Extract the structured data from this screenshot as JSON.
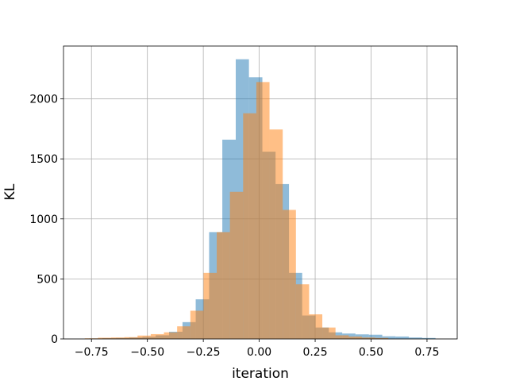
{
  "chart_data": {
    "type": "histogram",
    "title": "",
    "xlabel": "iteration",
    "ylabel": "KL",
    "xlim": [
      -0.875,
      0.885
    ],
    "ylim": [
      0,
      2440
    ],
    "xticks": [
      -0.75,
      -0.5,
      -0.25,
      0.0,
      0.25,
      0.5,
      0.75
    ],
    "xtick_labels": [
      "−0.75",
      "−0.50",
      "−0.25",
      "0.00",
      "0.25",
      "0.50",
      "0.75"
    ],
    "yticks": [
      0,
      500,
      1000,
      1500,
      2000
    ],
    "ytick_labels": [
      "0",
      "500",
      "1000",
      "1500",
      "2000"
    ],
    "grid": true,
    "legend": "none",
    "series": [
      {
        "color": "#1f77b4",
        "opacity": 0.5,
        "bins": [
          {
            "x0": -0.76,
            "x1": -0.701,
            "y": 4
          },
          {
            "x0": -0.701,
            "x1": -0.641,
            "y": 6
          },
          {
            "x0": -0.641,
            "x1": -0.582,
            "y": 8
          },
          {
            "x0": -0.582,
            "x1": -0.522,
            "y": 12
          },
          {
            "x0": -0.522,
            "x1": -0.463,
            "y": 18
          },
          {
            "x0": -0.463,
            "x1": -0.403,
            "y": 30
          },
          {
            "x0": -0.403,
            "x1": -0.343,
            "y": 60
          },
          {
            "x0": -0.343,
            "x1": -0.284,
            "y": 140
          },
          {
            "x0": -0.284,
            "x1": -0.224,
            "y": 330
          },
          {
            "x0": -0.224,
            "x1": -0.165,
            "y": 890
          },
          {
            "x0": -0.165,
            "x1": -0.105,
            "y": 1660
          },
          {
            "x0": -0.105,
            "x1": -0.046,
            "y": 2330
          },
          {
            "x0": -0.046,
            "x1": 0.014,
            "y": 2180
          },
          {
            "x0": 0.014,
            "x1": 0.073,
            "y": 1560
          },
          {
            "x0": 0.073,
            "x1": 0.133,
            "y": 1290
          },
          {
            "x0": 0.133,
            "x1": 0.192,
            "y": 550
          },
          {
            "x0": 0.192,
            "x1": 0.252,
            "y": 195
          },
          {
            "x0": 0.252,
            "x1": 0.311,
            "y": 95
          },
          {
            "x0": 0.311,
            "x1": 0.371,
            "y": 55
          },
          {
            "x0": 0.371,
            "x1": 0.43,
            "y": 45
          },
          {
            "x0": 0.43,
            "x1": 0.49,
            "y": 38
          },
          {
            "x0": 0.49,
            "x1": 0.55,
            "y": 35
          },
          {
            "x0": 0.55,
            "x1": 0.609,
            "y": 22
          },
          {
            "x0": 0.609,
            "x1": 0.669,
            "y": 20
          },
          {
            "x0": 0.669,
            "x1": 0.728,
            "y": 12
          },
          {
            "x0": 0.728,
            "x1": 0.788,
            "y": 8
          }
        ]
      },
      {
        "color": "#ff7f0e",
        "opacity": 0.5,
        "bins": [
          {
            "x0": -0.78,
            "x1": -0.721,
            "y": 5
          },
          {
            "x0": -0.721,
            "x1": -0.662,
            "y": 10
          },
          {
            "x0": -0.662,
            "x1": -0.603,
            "y": 12
          },
          {
            "x0": -0.603,
            "x1": -0.544,
            "y": 15
          },
          {
            "x0": -0.544,
            "x1": -0.485,
            "y": 28
          },
          {
            "x0": -0.485,
            "x1": -0.426,
            "y": 40
          },
          {
            "x0": -0.426,
            "x1": -0.367,
            "y": 55
          },
          {
            "x0": -0.367,
            "x1": -0.308,
            "y": 105
          },
          {
            "x0": -0.308,
            "x1": -0.249,
            "y": 235
          },
          {
            "x0": -0.249,
            "x1": -0.19,
            "y": 550
          },
          {
            "x0": -0.19,
            "x1": -0.131,
            "y": 890
          },
          {
            "x0": -0.131,
            "x1": -0.072,
            "y": 1225
          },
          {
            "x0": -0.072,
            "x1": -0.013,
            "y": 1880
          },
          {
            "x0": -0.013,
            "x1": 0.046,
            "y": 2140
          },
          {
            "x0": 0.046,
            "x1": 0.105,
            "y": 1745
          },
          {
            "x0": 0.105,
            "x1": 0.164,
            "y": 1075
          },
          {
            "x0": 0.164,
            "x1": 0.223,
            "y": 455
          },
          {
            "x0": 0.223,
            "x1": 0.282,
            "y": 205
          },
          {
            "x0": 0.282,
            "x1": 0.341,
            "y": 95
          },
          {
            "x0": 0.341,
            "x1": 0.4,
            "y": 30
          },
          {
            "x0": 0.4,
            "x1": 0.459,
            "y": 20
          },
          {
            "x0": 0.459,
            "x1": 0.518,
            "y": 12
          },
          {
            "x0": 0.518,
            "x1": 0.577,
            "y": 8
          }
        ]
      }
    ]
  }
}
